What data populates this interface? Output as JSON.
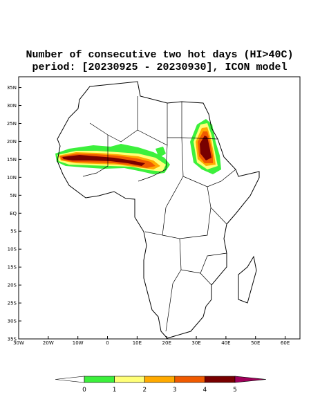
{
  "title": [
    "Number of consecutive two hot days (HI>40C)",
    "period: [20230925 - 20230930], ICON model"
  ],
  "map": {
    "lonlim": [
      -30,
      65
    ],
    "latlim": [
      -35,
      38
    ],
    "lonticks": [
      {
        "value": -30,
        "label": "30W"
      },
      {
        "value": -20,
        "label": "20W"
      },
      {
        "value": -10,
        "label": "10W"
      },
      0,
      {
        "value": 10,
        "label": "10E"
      },
      {
        "value": 20,
        "label": "20E"
      },
      {
        "value": 30,
        "label": "30E"
      },
      {
        "value": 40,
        "label": "40E"
      },
      {
        "value": 50,
        "label": "50E"
      },
      {
        "value": 60,
        "label": "60E"
      }
    ],
    "latticks": [
      {
        "value": 35,
        "label": "35N"
      },
      {
        "value": 30,
        "label": "30N"
      },
      {
        "value": 25,
        "label": "25N"
      },
      {
        "value": 20,
        "label": "20N"
      },
      {
        "value": 15,
        "label": "15N"
      },
      {
        "value": 10,
        "label": "10N"
      },
      {
        "value": 5,
        "label": "5N"
      },
      {
        "value": 0,
        "label": "EQ"
      },
      {
        "value": -5,
        "label": "5S"
      },
      {
        "value": -10,
        "label": "10S"
      },
      {
        "value": -15,
        "label": "15S"
      },
      {
        "value": -20,
        "label": "20S"
      },
      {
        "value": -25,
        "label": "25S"
      },
      {
        "value": -30,
        "label": "30S"
      },
      {
        "value": -35,
        "label": "35S"
      }
    ]
  },
  "colorbar": {
    "ticks": [
      0,
      1,
      2,
      3,
      4,
      5
    ],
    "colors": [
      "#ffffff",
      "#3cf03c",
      "#ffff78",
      "#ffaa00",
      "#f05a00",
      "#780000",
      "#a0005a"
    ]
  }
}
